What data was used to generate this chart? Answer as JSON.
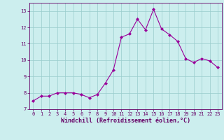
{
  "x": [
    0,
    1,
    2,
    3,
    4,
    5,
    6,
    7,
    8,
    9,
    10,
    11,
    12,
    13,
    14,
    15,
    16,
    17,
    18,
    19,
    20,
    21,
    22,
    23
  ],
  "y": [
    7.5,
    7.8,
    7.8,
    8.0,
    8.0,
    8.0,
    7.9,
    7.7,
    7.9,
    8.6,
    9.4,
    11.4,
    11.6,
    12.5,
    11.85,
    13.1,
    11.9,
    11.55,
    11.15,
    10.1,
    9.85,
    10.1,
    9.95,
    9.55
  ],
  "line_color": "#990099",
  "marker": "D",
  "marker_size": 2,
  "bg_color": "#cceeee",
  "grid_color": "#99cccc",
  "xlabel": "Windchill (Refroidissement éolien,°C)",
  "xlabel_color": "#660066",
  "tick_color": "#660066",
  "ylim": [
    7,
    13.5
  ],
  "xlim": [
    -0.5,
    23.5
  ],
  "yticks": [
    7,
    8,
    9,
    10,
    11,
    12,
    13
  ],
  "xticks": [
    0,
    1,
    2,
    3,
    4,
    5,
    6,
    7,
    8,
    9,
    10,
    11,
    12,
    13,
    14,
    15,
    16,
    17,
    18,
    19,
    20,
    21,
    22,
    23
  ],
  "tick_fontsize": 5,
  "xlabel_fontsize": 6,
  "linewidth": 0.8
}
